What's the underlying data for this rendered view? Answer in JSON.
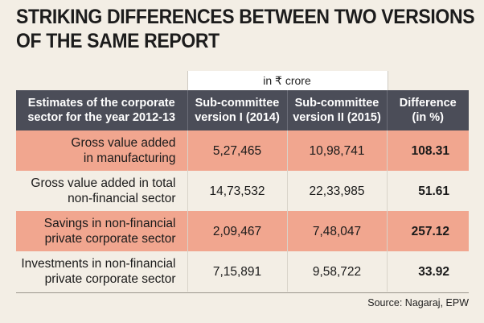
{
  "title_lines": [
    "STRIKING DIFFERENCES BETWEEN TWO VERSIONS",
    "OF THE SAME REPORT"
  ],
  "unit_label": "in ₹ crore",
  "source": "Source: Nagaraj, EPW",
  "colors": {
    "header_bg": "#4b4d58",
    "highlight_row": "#f1a68f",
    "background": "#f3eee5"
  },
  "chart_data": {
    "type": "table",
    "title": "STRIKING DIFFERENCES BETWEEN TWO VERSIONS OF THE SAME REPORT",
    "unit": "in ₹ crore",
    "columns": [
      "Estimates of the corporate sector for the year 2012-13",
      "Sub-committee version I (2014)",
      "Sub-committee version II (2015)",
      "Difference (in %)"
    ],
    "rows": [
      {
        "label": "Gross value added in manufacturing",
        "v1": "5,27,465",
        "v2": "10,98,741",
        "diff": "108.31"
      },
      {
        "label": "Gross value added in total non-financial sector",
        "v1": "14,73,532",
        "v2": "22,33,985",
        "diff": "51.61"
      },
      {
        "label": "Savings in non-financial private corporate sector",
        "v1": "2,09,467",
        "v2": "7,48,047",
        "diff": "257.12"
      },
      {
        "label": "Investments in non-financial private corporate sector",
        "v1": "7,15,891",
        "v2": "9,58,722",
        "diff": "33.92"
      }
    ],
    "row_labels_display": [
      [
        "Gross value added",
        "in manufacturing"
      ],
      [
        "Gross value added in total",
        "non-financial sector"
      ],
      [
        "Savings in non-financial",
        "private corporate sector"
      ],
      [
        "Investments in non-financial",
        "private corporate sector"
      ]
    ],
    "column_labels_display": [
      [
        "Estimates of the corporate",
        "sector for the year 2012-13"
      ],
      [
        "Sub-committee",
        "version I (2014)"
      ],
      [
        "Sub-committee",
        "version II (2015)"
      ],
      [
        "Difference",
        "(in %)"
      ]
    ]
  }
}
